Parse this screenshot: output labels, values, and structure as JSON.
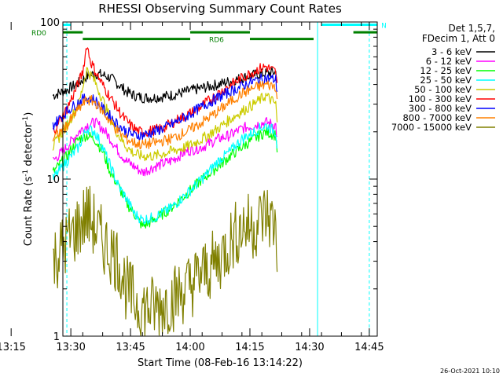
{
  "chart_data": {
    "type": "line",
    "title": "RHESSI Observing Summary Count Rates",
    "xlabel": "Start Time (08-Feb-16 13:14:22)",
    "ylabel_main": "Count Rate (s",
    "ylabel_sup1": "-1",
    "ylabel_mid": " detector",
    "ylabel_sup2": "-1",
    "ylabel_end": ")",
    "yscale": "log",
    "ylim": [
      1,
      100
    ],
    "xlim_minutes": [
      13.0,
      92.0
    ],
    "y_ticks": [
      {
        "value": 1,
        "label": "1"
      },
      {
        "value": 10,
        "label": "10"
      },
      {
        "value": 100,
        "label": "100"
      }
    ],
    "x_ticks": [
      {
        "minutes": 0,
        "label": "13:15"
      },
      {
        "minutes": 15,
        "label": "13:30"
      },
      {
        "minutes": 30,
        "label": "13:45"
      },
      {
        "minutes": 45,
        "label": "14:00"
      },
      {
        "minutes": 60,
        "label": "14:15"
      },
      {
        "minutes": 75,
        "label": "14:30"
      },
      {
        "minutes": 90,
        "label": "14:45"
      }
    ],
    "legend_header": [
      "Det 1,5,7,",
      "FDecim 1, Att 0"
    ],
    "legend_placement": "right",
    "series": [
      {
        "name": "3 - 6 keV",
        "color": "#000000",
        "points": [
          [
            10.5,
            34
          ],
          [
            14,
            37
          ],
          [
            17,
            41
          ],
          [
            19,
            45
          ],
          [
            21,
            47
          ],
          [
            23,
            46
          ],
          [
            25,
            44
          ],
          [
            27,
            40
          ],
          [
            29,
            36
          ],
          [
            31,
            34
          ],
          [
            33,
            33
          ],
          [
            36,
            33
          ],
          [
            40,
            34
          ],
          [
            44,
            36
          ],
          [
            48,
            38
          ],
          [
            52,
            40
          ],
          [
            55,
            42
          ],
          [
            58,
            44
          ],
          [
            61,
            46
          ],
          [
            64,
            47
          ],
          [
            66.5,
            48
          ],
          [
            67,
            41
          ]
        ]
      },
      {
        "name": "6 - 12 keV",
        "color": "#ff00ff",
        "points": [
          [
            10.5,
            13
          ],
          [
            14,
            16
          ],
          [
            17,
            20
          ],
          [
            19,
            22
          ],
          [
            21,
            23
          ],
          [
            23,
            21
          ],
          [
            25,
            18
          ],
          [
            27,
            15
          ],
          [
            29,
            13
          ],
          [
            31,
            12
          ],
          [
            33,
            11
          ],
          [
            36,
            12
          ],
          [
            40,
            13
          ],
          [
            44,
            15
          ],
          [
            48,
            16
          ],
          [
            52,
            18
          ],
          [
            55,
            19
          ],
          [
            58,
            21
          ],
          [
            61,
            22
          ],
          [
            64,
            23
          ],
          [
            66.5,
            22
          ],
          [
            67,
            16
          ]
        ]
      },
      {
        "name": "12 - 25 keV",
        "color": "#00ff00",
        "points": [
          [
            10.5,
            11
          ],
          [
            14,
            14
          ],
          [
            17,
            18
          ],
          [
            19,
            19
          ],
          [
            21,
            18
          ],
          [
            23,
            15
          ],
          [
            25,
            11
          ],
          [
            27,
            9
          ],
          [
            29,
            7
          ],
          [
            31,
            6
          ],
          [
            33,
            5
          ],
          [
            36,
            5.5
          ],
          [
            40,
            6.5
          ],
          [
            44,
            8
          ],
          [
            48,
            10
          ],
          [
            52,
            12
          ],
          [
            55,
            14
          ],
          [
            58,
            16
          ],
          [
            61,
            18
          ],
          [
            64,
            20
          ],
          [
            66.5,
            19
          ],
          [
            67,
            14
          ]
        ]
      },
      {
        "name": "25 - 50 keV",
        "color": "#00ffff",
        "points": [
          [
            10.5,
            10
          ],
          [
            14,
            13
          ],
          [
            17,
            16
          ],
          [
            19,
            21
          ],
          [
            21,
            20
          ],
          [
            23,
            16
          ],
          [
            25,
            12
          ],
          [
            27,
            9
          ],
          [
            29,
            7.5
          ],
          [
            31,
            6
          ],
          [
            33,
            5.5
          ],
          [
            36,
            5.7
          ],
          [
            40,
            6.5
          ],
          [
            44,
            8
          ],
          [
            48,
            10
          ],
          [
            52,
            13
          ],
          [
            55,
            15
          ],
          [
            58,
            18
          ],
          [
            61,
            20
          ],
          [
            64,
            22
          ],
          [
            66.5,
            20
          ],
          [
            67,
            15
          ]
        ]
      },
      {
        "name": "50 - 100 keV",
        "color": "#cccc00",
        "points": [
          [
            10.5,
            16
          ],
          [
            14,
            22
          ],
          [
            17,
            30
          ],
          [
            19,
            50
          ],
          [
            21,
            42
          ],
          [
            23,
            32
          ],
          [
            25,
            24
          ],
          [
            27,
            19
          ],
          [
            29,
            16
          ],
          [
            31,
            14.5
          ],
          [
            33,
            14
          ],
          [
            36,
            14
          ],
          [
            40,
            15
          ],
          [
            44,
            16
          ],
          [
            48,
            18
          ],
          [
            52,
            21
          ],
          [
            55,
            24
          ],
          [
            58,
            27
          ],
          [
            61,
            30
          ],
          [
            64,
            34
          ],
          [
            66.5,
            30
          ],
          [
            67,
            20
          ]
        ]
      },
      {
        "name": "100 - 300 keV",
        "color": "#ff0000",
        "points": [
          [
            10.5,
            20
          ],
          [
            14,
            28
          ],
          [
            16,
            36
          ],
          [
            18,
            48
          ],
          [
            19,
            72
          ],
          [
            20,
            56
          ],
          [
            22,
            44
          ],
          [
            24,
            36
          ],
          [
            26,
            30
          ],
          [
            28,
            25
          ],
          [
            30,
            22
          ],
          [
            32,
            20
          ],
          [
            34,
            20
          ],
          [
            38,
            21
          ],
          [
            42,
            24
          ],
          [
            46,
            27
          ],
          [
            50,
            32
          ],
          [
            54,
            38
          ],
          [
            58,
            44
          ],
          [
            62,
            50
          ],
          [
            64,
            52
          ],
          [
            66.5,
            48
          ],
          [
            67,
            35
          ]
        ]
      },
      {
        "name": "300 - 800 keV",
        "color": "#0000ff",
        "points": [
          [
            10.5,
            22
          ],
          [
            14,
            27
          ],
          [
            17,
            31
          ],
          [
            19,
            33
          ],
          [
            21,
            32
          ],
          [
            23,
            28
          ],
          [
            25,
            25
          ],
          [
            27,
            22
          ],
          [
            29,
            20
          ],
          [
            31,
            19
          ],
          [
            33,
            19
          ],
          [
            36,
            20
          ],
          [
            40,
            22
          ],
          [
            44,
            25
          ],
          [
            48,
            29
          ],
          [
            52,
            33
          ],
          [
            55,
            36
          ],
          [
            58,
            39
          ],
          [
            61,
            42
          ],
          [
            64,
            44
          ],
          [
            66.5,
            43
          ],
          [
            67,
            33
          ]
        ]
      },
      {
        "name": "800 - 7000 keV",
        "color": "#ff8000",
        "points": [
          [
            10.5,
            18
          ],
          [
            14,
            22
          ],
          [
            17,
            28
          ],
          [
            19,
            32
          ],
          [
            21,
            31
          ],
          [
            23,
            27
          ],
          [
            25,
            23
          ],
          [
            27,
            20
          ],
          [
            29,
            18
          ],
          [
            31,
            17
          ],
          [
            33,
            16.5
          ],
          [
            36,
            17
          ],
          [
            40,
            18
          ],
          [
            44,
            20
          ],
          [
            48,
            23
          ],
          [
            52,
            27
          ],
          [
            55,
            31
          ],
          [
            58,
            35
          ],
          [
            61,
            38
          ],
          [
            64,
            40
          ],
          [
            66.5,
            39
          ],
          [
            67,
            29
          ]
        ]
      },
      {
        "name": "7000 - 15000 keV",
        "color": "#808000",
        "points": [
          [
            10.5,
            3
          ],
          [
            14,
            4
          ],
          [
            17,
            5
          ],
          [
            19,
            6
          ],
          [
            21,
            5
          ],
          [
            23,
            4
          ],
          [
            25,
            3.5
          ],
          [
            27,
            3
          ],
          [
            29,
            2
          ],
          [
            31,
            1.7
          ],
          [
            33,
            1.5
          ],
          [
            36,
            1.5
          ],
          [
            40,
            1.7
          ],
          [
            44,
            2
          ],
          [
            48,
            2.5
          ],
          [
            52,
            3
          ],
          [
            55,
            4
          ],
          [
            58,
            5
          ],
          [
            61,
            5
          ],
          [
            64,
            6
          ],
          [
            66.5,
            5
          ],
          [
            67,
            3
          ]
        ]
      }
    ],
    "flag_bars": [
      {
        "label": "N",
        "color": "#00ffff",
        "y": 96,
        "segments": [
          [
            0,
            15
          ],
          [
            78,
            92
          ]
        ]
      },
      {
        "label": "RD0",
        "color": "#008000",
        "y": 86,
        "segments": [
          [
            0,
            18
          ]
        ]
      },
      {
        "label": "RD6",
        "color": "#008000",
        "y": 78,
        "segments": [
          [
            18,
            45
          ],
          [
            60,
            76
          ]
        ]
      },
      {
        "label": "",
        "color": "#008000",
        "y": 86,
        "segments": [
          [
            45,
            60
          ],
          [
            86,
            92
          ]
        ]
      }
    ],
    "vlines": [
      {
        "minutes": 14,
        "color": "#00ffff",
        "style": "dashed"
      },
      {
        "minutes": 77,
        "color": "#00ffff",
        "style": "solid"
      },
      {
        "minutes": 90,
        "color": "#00ffff",
        "style": "dashed"
      }
    ],
    "grid": false
  },
  "footer": {
    "date_stamp": "26-Oct-2021 10:10"
  }
}
